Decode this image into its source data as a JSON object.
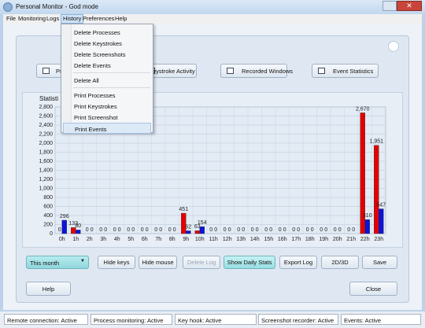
{
  "window": {
    "title": "Personal Monitor - God mode"
  },
  "menu": [
    "File",
    "Monitoring",
    "Logs",
    "History",
    "Preferences",
    "Help"
  ],
  "history_menu": [
    [
      "Delete Processes",
      "Delete Keystrokes",
      "Delete Screenshots",
      "Delete Events"
    ],
    [
      "Delete All"
    ],
    [
      "Print Processes",
      "Print Keystrokes",
      "Print Screenshot",
      "Print Events"
    ]
  ],
  "toolbar": [
    "Pr",
    "eystroke Activity",
    "Recorded Windows",
    "Event Statistics"
  ],
  "statistics_label": "Statisti",
  "chart_data": {
    "type": "bar",
    "categories": [
      "0h",
      "1h",
      "2h",
      "3h",
      "4h",
      "5h",
      "6h",
      "7h",
      "8h",
      "9h",
      "10h",
      "11h",
      "12h",
      "13h",
      "14h",
      "15h",
      "16h",
      "17h",
      "18h",
      "19h",
      "20h",
      "21h",
      "22h",
      "23h"
    ],
    "series": [
      {
        "color": "#e30000",
        "values": [
          0,
          133,
          0,
          0,
          0,
          0,
          0,
          0,
          0,
          451,
          63,
          0,
          0,
          0,
          0,
          0,
          0,
          0,
          0,
          0,
          0,
          0,
          2670,
          1951
        ],
        "value_labels": [
          "0",
          "133",
          "0",
          "0",
          "0",
          "0",
          "0",
          "0",
          "0",
          "451",
          "63",
          "0",
          "0",
          "0",
          "0",
          "0",
          "0",
          "0",
          "0",
          "0",
          "0",
          "0",
          "2,670",
          "1,951"
        ]
      },
      {
        "color": "#0a14d8",
        "values": [
          296,
          80,
          0,
          0,
          0,
          0,
          0,
          0,
          0,
          62,
          154,
          0,
          0,
          0,
          0,
          0,
          0,
          0,
          0,
          0,
          0,
          0,
          310,
          547
        ],
        "value_labels": [
          "296",
          "80",
          "0",
          "0",
          "0",
          "0",
          "0",
          "0",
          "0",
          "62",
          "154",
          "0",
          "0",
          "0",
          "0",
          "0",
          "0",
          "0",
          "0",
          "0",
          "0",
          "0",
          "310",
          "547"
        ]
      }
    ],
    "ylim": [
      0,
      2800
    ],
    "yticks": [
      0,
      200,
      400,
      600,
      800,
      {
        "value": 1000,
        "label": "1,000"
      },
      {
        "value": 1200,
        "label": "1,200"
      },
      {
        "value": 1400,
        "label": "1,400"
      },
      {
        "value": 1600,
        "label": "1,600"
      },
      {
        "value": 1800,
        "label": "1,800"
      },
      {
        "value": 2000,
        "label": "2,000"
      },
      {
        "value": 2200,
        "label": "2,200"
      },
      {
        "value": 2400,
        "label": "2,400"
      },
      {
        "value": 2600,
        "label": "2,600"
      },
      {
        "value": 2800,
        "label": "2,800"
      }
    ],
    "grid": true
  },
  "controls": {
    "period": "This month",
    "buttons": [
      "Hide keys",
      "Hide mouse",
      "Delete Log",
      "Show Daily Stats",
      "Export Log",
      "2D/3D",
      "Save"
    ]
  },
  "footer_buttons": [
    "Help",
    "Close"
  ],
  "status_bar": [
    "Remote connection: Active",
    "Process monitoring: Active",
    "Key hook: Active",
    "Screenshot recorder: Active",
    "Events: Active"
  ]
}
